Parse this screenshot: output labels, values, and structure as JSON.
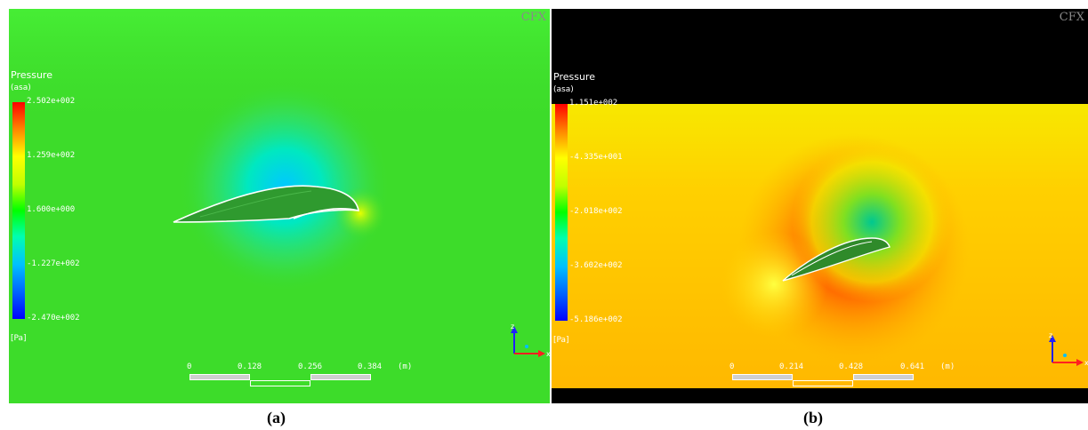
{
  "panels": [
    {
      "id": "a",
      "logo": "CFX",
      "legend_title": "Pressure",
      "legend_sub": "(asa)",
      "ticks": [
        "2.502e+002",
        "1.259e+002",
        "1.600e+000",
        "-1.227e+002",
        "-2.470e+002"
      ],
      "unit": "[Pa]",
      "scale_labels": [
        "0",
        "0.128",
        "0.256",
        "0.384",
        "(m)"
      ],
      "axes": {
        "z": "z",
        "x": "x"
      },
      "caption": "(a)"
    },
    {
      "id": "b",
      "logo": "CFX",
      "legend_title": "Pressure",
      "legend_sub": "(asa)",
      "ticks": [
        "1.151e+002",
        "-4.335e+001",
        "-2.018e+002",
        "-3.602e+002",
        "-5.186e+002"
      ],
      "unit": "[Pa]",
      "scale_labels": [
        "0",
        "0.214",
        "0.428",
        "0.641",
        "(m)"
      ],
      "axes": {
        "z": "z",
        "x": "x"
      },
      "caption": "(b)"
    }
  ]
}
